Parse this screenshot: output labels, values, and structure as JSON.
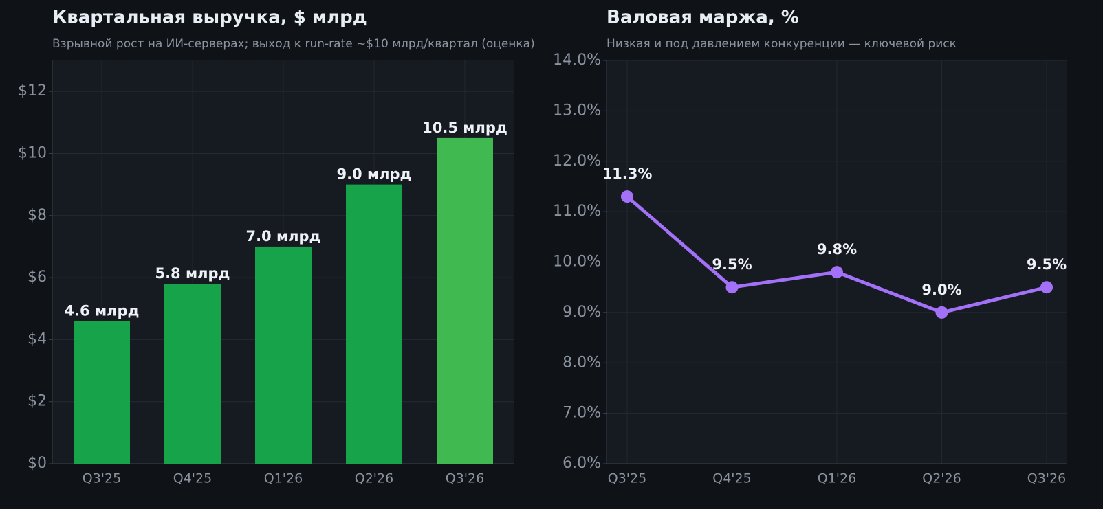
{
  "chart_data": [
    {
      "type": "bar",
      "title": "Квартальная выручка, $ млрд",
      "subtitle": "Взрывной рост на ИИ-серверах; выход к run-rate ~$10 млрд/квартал (оценка)",
      "categories": [
        "Q3'25",
        "Q4'25",
        "Q1'26",
        "Q2'26",
        "Q3'26"
      ],
      "values": [
        4.6,
        5.8,
        7.0,
        9.0,
        10.5
      ],
      "value_labels": [
        "4.6 млрд",
        "5.8 млрд",
        "7.0 млрд",
        "9.0 млрд",
        "10.5 млрд"
      ],
      "colors": [
        "#16a34a",
        "#16a34a",
        "#16a34a",
        "#16a34a",
        "#3fb950"
      ],
      "ylim": [
        0,
        13
      ],
      "yticks": [
        {
          "value": 0,
          "label": "$0"
        },
        {
          "value": 2,
          "label": "$2"
        },
        {
          "value": 4,
          "label": "$4"
        },
        {
          "value": 6,
          "label": "$6"
        },
        {
          "value": 8,
          "label": "$8"
        },
        {
          "value": 10,
          "label": "$10"
        },
        {
          "value": 12,
          "label": "$12"
        }
      ],
      "grid": true
    },
    {
      "type": "line",
      "title": "Валовая маржа, %",
      "subtitle": "Низкая и под давлением конкуренции — ключевой риск",
      "categories": [
        "Q3'25",
        "Q4'25",
        "Q1'26",
        "Q2'26",
        "Q3'26"
      ],
      "values": [
        11.3,
        9.5,
        9.8,
        9.0,
        9.5
      ],
      "value_labels": [
        "11.3%",
        "9.5%",
        "9.8%",
        "9.0%",
        "9.5%"
      ],
      "color": "#a371f7",
      "ylim": [
        6,
        14
      ],
      "yticks": [
        {
          "value": 6,
          "label": "6.0%"
        },
        {
          "value": 7,
          "label": "7.0%"
        },
        {
          "value": 8,
          "label": "8.0%"
        },
        {
          "value": 9,
          "label": "9.0%"
        },
        {
          "value": 10,
          "label": "10.0%"
        },
        {
          "value": 11,
          "label": "11.0%"
        },
        {
          "value": 12,
          "label": "12.0%"
        },
        {
          "value": 13,
          "label": "13.0%"
        },
        {
          "value": 14,
          "label": "14.0%"
        }
      ],
      "grid": true
    }
  ]
}
